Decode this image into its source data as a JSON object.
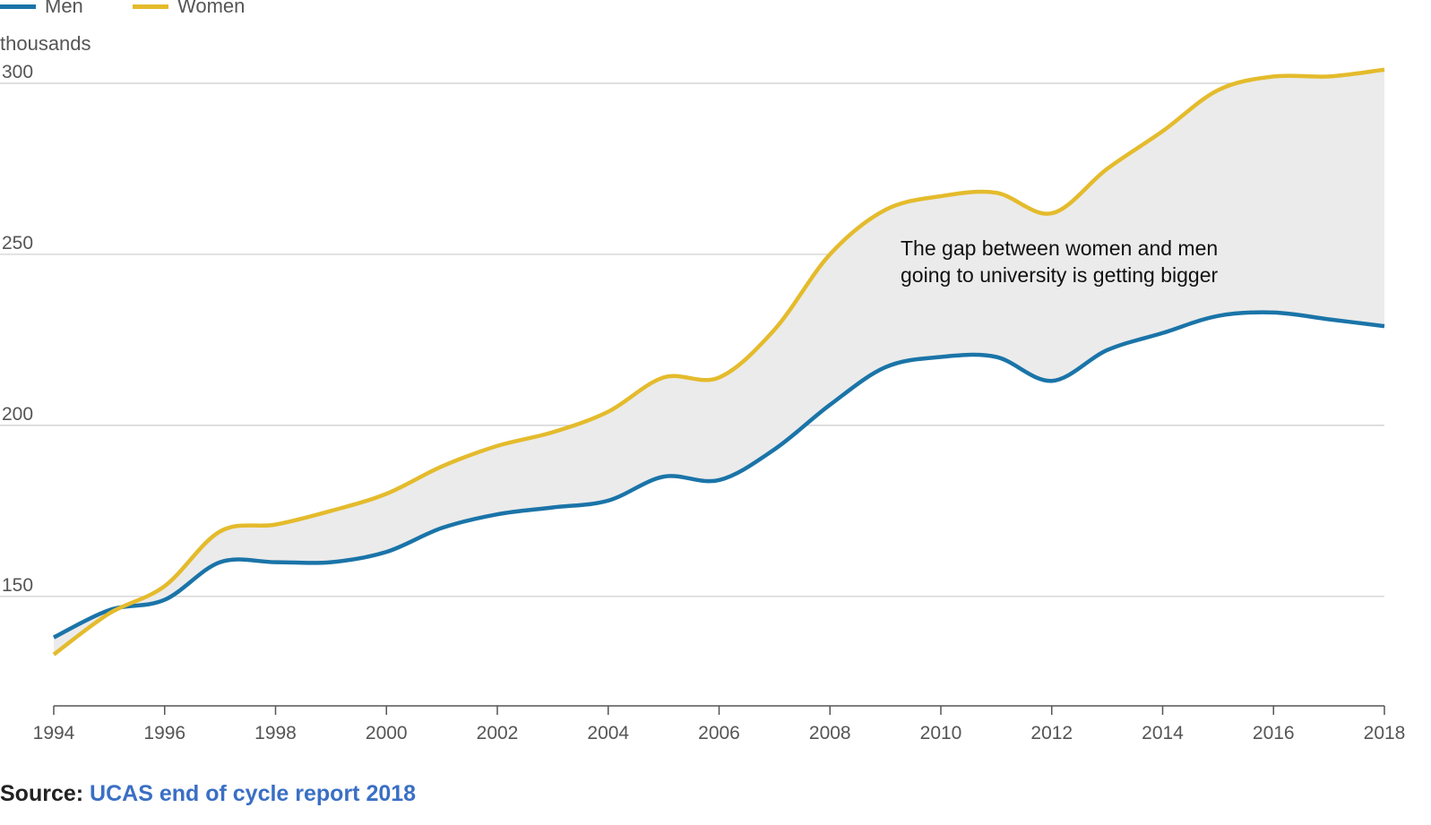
{
  "legend": {
    "men_label": "Men",
    "women_label": "Women"
  },
  "colors": {
    "men": "#1a74a8",
    "women": "#e4bb2c",
    "gap_fill": "#ebebeb",
    "grid": "#cccccc",
    "axis": "#555555"
  },
  "annotation": "The gap between women and men going to university is getting bigger",
  "source": {
    "prefix": "Source:",
    "link_text": "UCAS end of cycle report 2018"
  },
  "chart_data": {
    "type": "line",
    "ylabel": "thousands",
    "xlim": [
      1994,
      2018
    ],
    "ylim": [
      118,
      300
    ],
    "y_ticks": [
      150,
      200,
      250,
      300
    ],
    "x_ticks": [
      1994,
      1996,
      1998,
      2000,
      2002,
      2004,
      2006,
      2008,
      2010,
      2012,
      2014,
      2016,
      2018
    ],
    "grid": true,
    "legend_position": "top-left",
    "shaded_gap_between_series": true,
    "x": [
      1994,
      1995,
      1996,
      1997,
      1998,
      1999,
      2000,
      2001,
      2002,
      2003,
      2004,
      2005,
      2006,
      2007,
      2008,
      2009,
      2010,
      2011,
      2012,
      2013,
      2014,
      2015,
      2016,
      2017,
      2018
    ],
    "series": [
      {
        "name": "Men",
        "values": [
          138,
          146,
          149,
          160,
          160,
          160,
          163,
          170,
          174,
          176,
          178,
          185,
          184,
          193,
          206,
          217,
          220,
          220,
          213,
          222,
          227,
          232,
          233,
          231,
          229
        ]
      },
      {
        "name": "Women",
        "values": [
          133,
          145,
          153,
          169,
          171,
          175,
          180,
          188,
          194,
          198,
          204,
          214,
          214,
          228,
          250,
          263,
          267,
          268,
          262,
          275,
          286,
          298,
          302,
          302,
          304
        ]
      }
    ]
  }
}
